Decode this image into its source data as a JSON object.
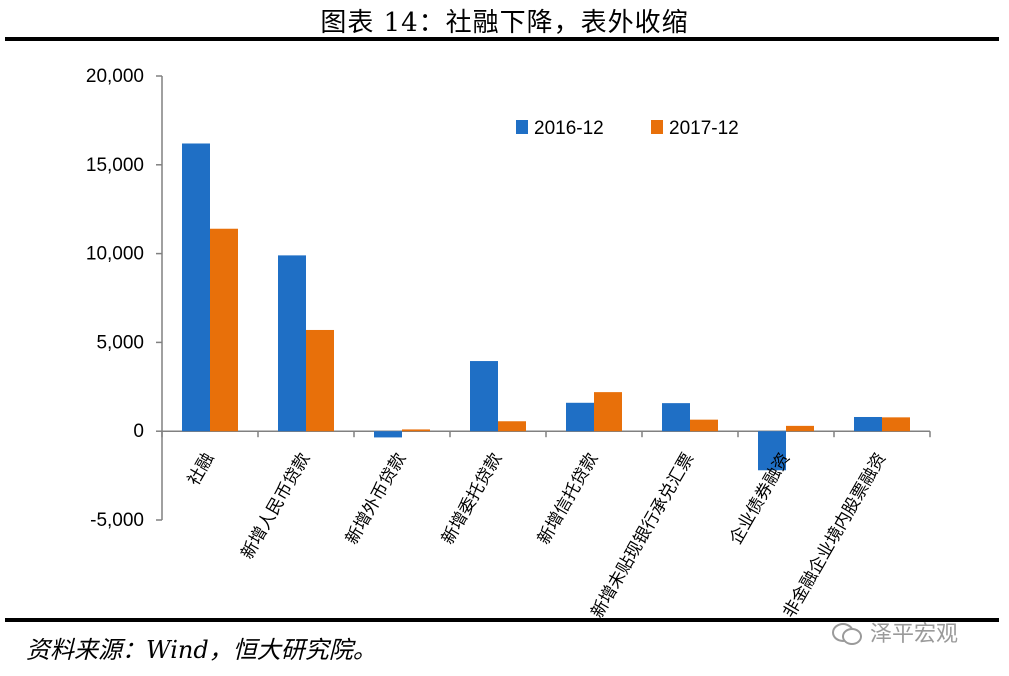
{
  "title": "图表 14：社融下降，表外收缩",
  "source": "资料来源：Wind，恒大研究院。",
  "watermark": "泽平宏观",
  "colors": {
    "series_2016": "#1f6fc5",
    "series_2017": "#e8700a"
  },
  "chart_data": {
    "type": "bar",
    "categories": [
      "社融",
      "新增人民币贷款",
      "新增外币贷款",
      "新增委托贷款",
      "新增信托贷款",
      "新增未贴现银行承兑汇票",
      "企业债券融资",
      "非金融企业境内股票融资"
    ],
    "series": [
      {
        "name": "2016-12",
        "values": [
          16200,
          9900,
          -350,
          3950,
          1600,
          1580,
          -2200,
          800
        ]
      },
      {
        "name": "2017-12",
        "values": [
          11400,
          5700,
          100,
          560,
          2200,
          650,
          300,
          780
        ]
      }
    ],
    "ylim": [
      -5000,
      20000
    ],
    "yticks": [
      "20,000",
      "15,000",
      "10,000",
      "5,000",
      "0",
      "-5,000"
    ],
    "ytick_values": [
      20000,
      15000,
      10000,
      5000,
      0,
      -5000
    ],
    "legend": "top-right",
    "grid": false
  }
}
